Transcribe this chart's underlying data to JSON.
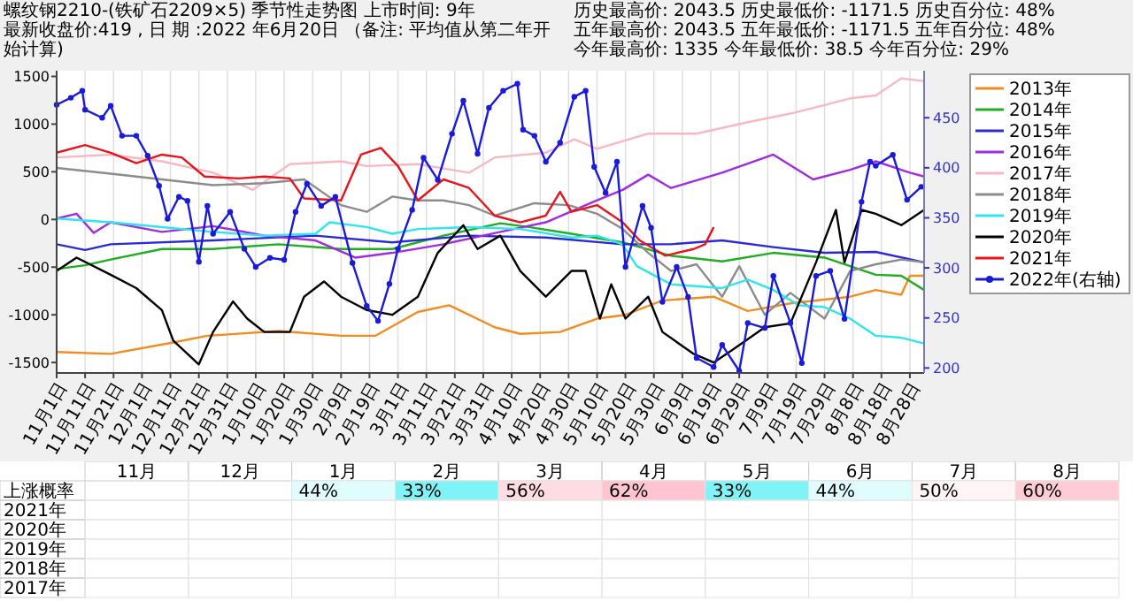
{
  "chart_data": [
    {
      "type": "line",
      "title": "螺纹钢2210-(铁矿石2209×5)  季节性走势图    上市时间: 9年",
      "subtitle": "最新收盘价:419 , 日 期 :2022 年6月20日 （备注: 平均值从第二年开始计算)",
      "annotations": [
        "历史最高价: 2043.5 历史最低价: -1171.5 历史百分位: 48%",
        "五年最高价: 2043.5 五年最低价: -1171.5 五年百分位: 48%",
        "今年最高价: 1335 今年最低价: 38.5 今年百分位: 29%"
      ],
      "xlim": [
        "2021-11-01",
        "2022-09-02"
      ],
      "ylim": [
        -1610,
        1560
      ],
      "y2lim": [
        195,
        497
      ],
      "xticks": [
        {
          "value": "2021-11-01",
          "label": "11月1日"
        },
        {
          "value": "2021-11-11",
          "label": "11月11日"
        },
        {
          "value": "2021-11-21",
          "label": "11月21日"
        },
        {
          "value": "2021-12-01",
          "label": "12月1日"
        },
        {
          "value": "2021-12-11",
          "label": "12月11日"
        },
        {
          "value": "2021-12-21",
          "label": "12月21日"
        },
        {
          "value": "2021-12-31",
          "label": "12月31日"
        },
        {
          "value": "2022-01-10",
          "label": "1月10日"
        },
        {
          "value": "2022-01-20",
          "label": "1月20日"
        },
        {
          "value": "2022-01-30",
          "label": "1月30日"
        },
        {
          "value": "2022-02-09",
          "label": "2月9日"
        },
        {
          "value": "2022-02-19",
          "label": "2月19日"
        },
        {
          "value": "2022-03-01",
          "label": "3月1日"
        },
        {
          "value": "2022-03-11",
          "label": "3月11日"
        },
        {
          "value": "2022-03-21",
          "label": "3月21日"
        },
        {
          "value": "2022-03-31",
          "label": "3月31日"
        },
        {
          "value": "2022-04-10",
          "label": "4月10日"
        },
        {
          "value": "2022-04-20",
          "label": "4月20日"
        },
        {
          "value": "2022-04-30",
          "label": "4月30日"
        },
        {
          "value": "2022-05-10",
          "label": "5月10日"
        },
        {
          "value": "2022-05-20",
          "label": "5月20日"
        },
        {
          "value": "2022-05-30",
          "label": "5月30日"
        },
        {
          "value": "2022-06-09",
          "label": "6月9日"
        },
        {
          "value": "2022-06-19",
          "label": "6月19日"
        },
        {
          "value": "2022-06-29",
          "label": "6月29日"
        },
        {
          "value": "2022-07-09",
          "label": "7月9日"
        },
        {
          "value": "2022-07-19",
          "label": "7月19日"
        },
        {
          "value": "2022-07-29",
          "label": "7月29日"
        },
        {
          "value": "2022-08-08",
          "label": "8月8日"
        },
        {
          "value": "2022-08-18",
          "label": "8月18日"
        },
        {
          "value": "2022-08-28",
          "label": "8月28日"
        }
      ],
      "yticks": [
        -1500,
        -1000,
        -500,
        0,
        500,
        1000,
        1500
      ],
      "y2ticks": [
        200,
        250,
        300,
        350,
        400,
        450
      ],
      "grid": "x",
      "legend": "right",
      "series": [
        {
          "name": "2013年",
          "color": "#f28c1e",
          "x": [
            "2021-11-01",
            "2021-11-20",
            "2021-12-12",
            "2021-12-24",
            "2022-01-18",
            "2022-02-09",
            "2022-02-21",
            "2022-03-08",
            "2022-03-19",
            "2022-04-04",
            "2022-04-13",
            "2022-04-27",
            "2022-05-10",
            "2022-05-20",
            "2022-06-02",
            "2022-06-20",
            "2022-07-02",
            "2022-07-17",
            "2022-08-07",
            "2022-08-16",
            "2022-08-25",
            "2022-08-28",
            "2022-09-02"
          ],
          "values": [
            -1390,
            -1410,
            -1290,
            -1220,
            -1170,
            -1220,
            -1220,
            -970,
            -900,
            -1130,
            -1200,
            -1180,
            -1040,
            -1000,
            -850,
            -810,
            -960,
            -880,
            -810,
            -740,
            -790,
            -590,
            -590
          ]
        },
        {
          "name": "2014年",
          "color": "#1fae1f",
          "x": [
            "2021-11-01",
            "2021-11-11",
            "2021-11-20",
            "2021-12-08",
            "2021-12-26",
            "2022-01-18",
            "2022-02-09",
            "2022-02-27",
            "2022-03-17",
            "2022-04-06",
            "2022-04-16",
            "2022-05-01",
            "2022-05-19",
            "2022-06-05",
            "2022-06-23",
            "2022-07-11",
            "2022-07-29",
            "2022-08-16",
            "2022-08-25",
            "2022-09-02"
          ],
          "values": [
            -520,
            -480,
            -420,
            -310,
            -310,
            -260,
            -310,
            -310,
            -170,
            -40,
            -80,
            -150,
            -240,
            -380,
            -440,
            -350,
            -400,
            -580,
            -590,
            -740
          ]
        },
        {
          "name": "2015年",
          "color": "#2b2bd6",
          "x": [
            "2021-11-01",
            "2021-11-11",
            "2021-11-20",
            "2021-12-26",
            "2022-01-31",
            "2022-02-27",
            "2022-03-26",
            "2022-04-22",
            "2022-05-19",
            "2022-06-05",
            "2022-06-23",
            "2022-07-11",
            "2022-07-29",
            "2022-08-16",
            "2022-09-02"
          ],
          "values": [
            -260,
            -320,
            -260,
            -220,
            -170,
            -240,
            -170,
            -190,
            -260,
            -260,
            -220,
            -290,
            -350,
            -340,
            -450
          ]
        },
        {
          "name": "2016年",
          "color": "#a02be0",
          "x": [
            "2021-11-01",
            "2021-11-08",
            "2021-11-14",
            "2021-11-20",
            "2021-12-08",
            "2021-12-26",
            "2022-01-13",
            "2022-01-31",
            "2022-02-14",
            "2022-02-27",
            "2022-03-17",
            "2022-04-06",
            "2022-04-22",
            "2022-05-10",
            "2022-05-19",
            "2022-05-28",
            "2022-06-05",
            "2022-06-23",
            "2022-07-11",
            "2022-07-25",
            "2022-08-07",
            "2022-08-16",
            "2022-08-28",
            "2022-09-02"
          ],
          "values": [
            10,
            60,
            -140,
            -30,
            -130,
            -70,
            -170,
            -220,
            -400,
            -350,
            -260,
            -130,
            -30,
            200,
            310,
            470,
            330,
            490,
            680,
            420,
            520,
            610,
            490,
            450
          ]
        },
        {
          "name": "2017年",
          "color": "#f7b8c4",
          "x": [
            "2021-11-01",
            "2021-11-20",
            "2021-12-08",
            "2021-12-26",
            "2022-01-09",
            "2022-01-22",
            "2022-02-09",
            "2022-02-18",
            "2022-03-08",
            "2022-03-26",
            "2022-04-04",
            "2022-04-22",
            "2022-05-02",
            "2022-05-10",
            "2022-05-28",
            "2022-06-14",
            "2022-07-02",
            "2022-07-17",
            "2022-07-29",
            "2022-08-07",
            "2022-08-16",
            "2022-08-25",
            "2022-09-02"
          ],
          "values": [
            650,
            680,
            610,
            490,
            310,
            580,
            610,
            560,
            580,
            490,
            650,
            700,
            840,
            740,
            900,
            900,
            1020,
            1110,
            1200,
            1270,
            1300,
            1480,
            1450
          ]
        },
        {
          "name": "2018年",
          "color": "#8c8c8c",
          "x": [
            "2021-11-01",
            "2021-11-20",
            "2021-12-08",
            "2021-12-26",
            "2022-01-13",
            "2022-01-27",
            "2022-02-09",
            "2022-02-18",
            "2022-02-27",
            "2022-03-08",
            "2022-03-17",
            "2022-03-26",
            "2022-04-04",
            "2022-04-18",
            "2022-04-30",
            "2022-05-10",
            "2022-05-19",
            "2022-05-28",
            "2022-06-05",
            "2022-06-14",
            "2022-06-23",
            "2022-06-29",
            "2022-07-08",
            "2022-07-17",
            "2022-07-29",
            "2022-08-07",
            "2022-08-16",
            "2022-08-25",
            "2022-09-02"
          ],
          "values": [
            540,
            480,
            420,
            360,
            380,
            420,
            150,
            80,
            240,
            200,
            200,
            150,
            40,
            170,
            150,
            60,
            -100,
            -350,
            -540,
            -470,
            -810,
            -490,
            -1000,
            -770,
            -1040,
            -540,
            -470,
            -420,
            -450
          ]
        },
        {
          "name": "2019年",
          "color": "#2ee6ef",
          "x": [
            "2021-11-01",
            "2021-11-20",
            "2021-12-08",
            "2021-12-26",
            "2022-01-13",
            "2022-01-31",
            "2022-02-05",
            "2022-02-18",
            "2022-02-27",
            "2022-03-08",
            "2022-03-26",
            "2022-04-13",
            "2022-05-01",
            "2022-05-10",
            "2022-05-19",
            "2022-05-24",
            "2022-06-05",
            "2022-06-23",
            "2022-07-02",
            "2022-07-11",
            "2022-07-20",
            "2022-07-29",
            "2022-08-07",
            "2022-08-16",
            "2022-08-25",
            "2022-09-02"
          ],
          "values": [
            10,
            -30,
            -80,
            -130,
            -170,
            -150,
            -30,
            -80,
            -150,
            -100,
            -80,
            -100,
            -190,
            -170,
            -260,
            -490,
            -680,
            -720,
            -630,
            -740,
            -900,
            -920,
            -1040,
            -1220,
            -1240,
            -1300
          ]
        },
        {
          "name": "2020年",
          "color": "#000000",
          "x": [
            "2021-11-01",
            "2021-11-08",
            "2021-11-20",
            "2021-11-29",
            "2021-12-08",
            "2021-12-12",
            "2021-12-21",
            "2021-12-26",
            "2022-01-02",
            "2022-01-07",
            "2022-01-13",
            "2022-01-22",
            "2022-01-27",
            "2022-02-03",
            "2022-02-09",
            "2022-02-18",
            "2022-02-27",
            "2022-03-08",
            "2022-03-15",
            "2022-03-24",
            "2022-03-29",
            "2022-04-06",
            "2022-04-13",
            "2022-04-22",
            "2022-05-01",
            "2022-05-06",
            "2022-05-11",
            "2022-05-15",
            "2022-05-20",
            "2022-05-28",
            "2022-06-02",
            "2022-06-13",
            "2022-06-20",
            "2022-06-27",
            "2022-07-08",
            "2022-07-17",
            "2022-07-26",
            "2022-08-02",
            "2022-08-05",
            "2022-08-11",
            "2022-08-16",
            "2022-08-25",
            "2022-09-02"
          ],
          "values": [
            -540,
            -400,
            -580,
            -720,
            -950,
            -1270,
            -1520,
            -1180,
            -860,
            -1040,
            -1180,
            -1180,
            -810,
            -650,
            -810,
            -950,
            -1000,
            -810,
            -350,
            -60,
            -310,
            -170,
            -540,
            -810,
            -540,
            -540,
            -1040,
            -680,
            -1040,
            -810,
            -1180,
            -1410,
            -1500,
            -1360,
            -1130,
            -1090,
            -450,
            100,
            -450,
            100,
            60,
            -60,
            100
          ]
        },
        {
          "name": "2021年",
          "color": "#e8141a",
          "x": [
            "2021-11-01",
            "2021-11-11",
            "2021-11-20",
            "2021-11-29",
            "2021-12-08",
            "2021-12-15",
            "2021-12-23",
            "2022-01-04",
            "2022-01-13",
            "2022-01-22",
            "2022-01-27",
            "2022-02-09",
            "2022-02-16",
            "2022-02-23",
            "2022-03-01",
            "2022-03-08",
            "2022-03-17",
            "2022-03-26",
            "2022-04-04",
            "2022-04-13",
            "2022-04-22",
            "2022-04-27",
            "2022-05-01",
            "2022-05-10",
            "2022-05-19",
            "2022-05-25",
            "2022-06-03",
            "2022-06-13",
            "2022-06-17",
            "2022-06-20"
          ],
          "values": [
            700,
            780,
            700,
            590,
            680,
            650,
            450,
            430,
            450,
            430,
            220,
            200,
            680,
            750,
            560,
            200,
            420,
            330,
            40,
            -30,
            40,
            290,
            80,
            150,
            -30,
            -220,
            -380,
            -310,
            -260,
            -80
          ]
        },
        {
          "name": "2022年(右轴)",
          "color": "#1a1ad9",
          "axis": "y2",
          "marker": "circle",
          "x": [
            "2021-11-01",
            "2021-11-06",
            "2021-11-10",
            "2021-11-11",
            "2021-11-17",
            "2021-11-20",
            "2021-11-24",
            "2021-11-29",
            "2021-12-03",
            "2021-12-07",
            "2021-12-10",
            "2021-12-14",
            "2021-12-17",
            "2021-12-21",
            "2021-12-24",
            "2021-12-26",
            "2022-01-01",
            "2022-01-06",
            "2022-01-10",
            "2022-01-15",
            "2022-01-20",
            "2022-01-24",
            "2022-01-28",
            "2022-02-02",
            "2022-02-07",
            "2022-02-13",
            "2022-02-18",
            "2022-02-22",
            "2022-02-26",
            "2022-03-01",
            "2022-03-06",
            "2022-03-10",
            "2022-03-15",
            "2022-03-20",
            "2022-03-24",
            "2022-03-29",
            "2022-04-02",
            "2022-04-07",
            "2022-04-12",
            "2022-04-14",
            "2022-04-18",
            "2022-04-22",
            "2022-04-27",
            "2022-05-02",
            "2022-05-06",
            "2022-05-09",
            "2022-05-13",
            "2022-05-17",
            "2022-05-20",
            "2022-05-26",
            "2022-05-29",
            "2022-06-02",
            "2022-06-07",
            "2022-06-11",
            "2022-06-14",
            "2022-06-20",
            "2022-06-23",
            "2022-06-29",
            "2022-07-02",
            "2022-07-08",
            "2022-07-11",
            "2022-07-17",
            "2022-07-21",
            "2022-07-26",
            "2022-07-31",
            "2022-08-05",
            "2022-08-11",
            "2022-08-14",
            "2022-08-16",
            "2022-08-22",
            "2022-08-27",
            "2022-09-01"
          ],
          "values": [
            463,
            470,
            477,
            458,
            450,
            462,
            432,
            432,
            412,
            382,
            349,
            371,
            367,
            306,
            362,
            334,
            356,
            319,
            301,
            310,
            308,
            356,
            384,
            362,
            371,
            305,
            262,
            247,
            284,
            319,
            358,
            410,
            388,
            434,
            467,
            414,
            460,
            477,
            484,
            438,
            432,
            406,
            425,
            471,
            477,
            401,
            375,
            406,
            301,
            362,
            340,
            266,
            301,
            271,
            210,
            201,
            223,
            197,
            245,
            240,
            292,
            245,
            205,
            292,
            297,
            249,
            366,
            406,
            402,
            413,
            368,
            381
          ]
        }
      ]
    },
    {
      "type": "heatmap",
      "categories": [
        "11月",
        "12月",
        "1月",
        "2月",
        "3月",
        "4月",
        "5月",
        "6月",
        "7月",
        "8月"
      ],
      "y_categories": [
        "上涨概率",
        "2021年",
        "2020年",
        "2019年",
        "2018年",
        "2017年"
      ],
      "cells": [
        [
          null,
          null,
          44,
          33,
          56,
          62,
          33,
          44,
          50,
          60
        ],
        [
          null,
          null,
          null,
          null,
          null,
          null,
          null,
          null,
          null,
          null
        ],
        [
          null,
          null,
          null,
          null,
          null,
          null,
          null,
          null,
          null,
          null
        ],
        [
          null,
          null,
          null,
          null,
          null,
          null,
          null,
          null,
          null,
          null
        ],
        [
          null,
          null,
          null,
          null,
          null,
          null,
          null,
          null,
          null,
          null
        ],
        [
          null,
          null,
          null,
          null,
          null,
          null,
          null,
          null,
          null,
          null
        ]
      ],
      "cell_labels": [
        [
          null,
          null,
          "44%",
          "33%",
          "56%",
          "62%",
          "33%",
          "44%",
          "50%",
          "60%"
        ],
        [
          null,
          null,
          null,
          null,
          null,
          null,
          null,
          null,
          null,
          null
        ],
        [
          null,
          null,
          null,
          null,
          null,
          null,
          null,
          null,
          null,
          null
        ],
        [
          null,
          null,
          null,
          null,
          null,
          null,
          null,
          null,
          null,
          null
        ],
        [
          null,
          null,
          null,
          null,
          null,
          null,
          null,
          null,
          null,
          null
        ],
        [
          null,
          null,
          null,
          null,
          null,
          null,
          null,
          null,
          null,
          null
        ]
      ]
    }
  ]
}
